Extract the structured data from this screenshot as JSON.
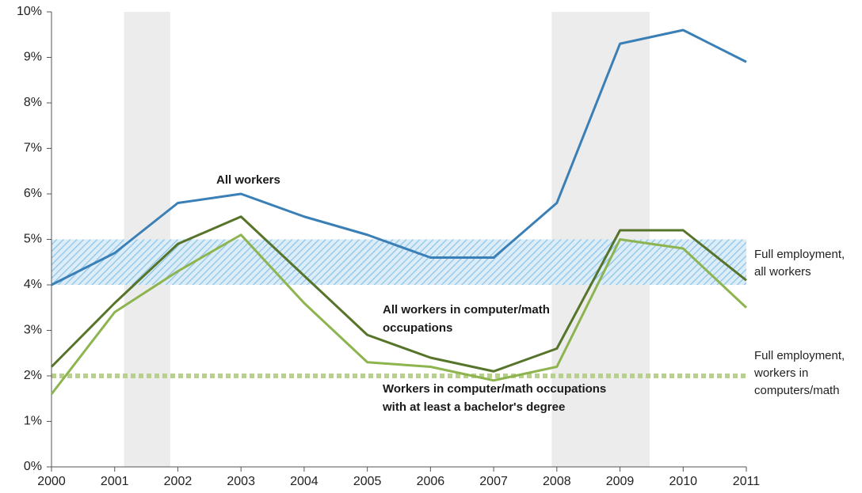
{
  "chart_data": {
    "type": "line",
    "x": [
      2000,
      2001,
      2002,
      2003,
      2004,
      2005,
      2006,
      2007,
      2008,
      2009,
      2010,
      2011
    ],
    "xlim": [
      2000,
      2011
    ],
    "xticks": [
      2000,
      2001,
      2002,
      2003,
      2004,
      2005,
      2006,
      2007,
      2008,
      2009,
      2010,
      2011
    ],
    "ylim": [
      0,
      10
    ],
    "yticks": [
      {
        "value": 0,
        "label": "0%"
      },
      {
        "value": 1,
        "label": "1%"
      },
      {
        "value": 2,
        "label": "2%"
      },
      {
        "value": 3,
        "label": "3%"
      },
      {
        "value": 4,
        "label": "4%"
      },
      {
        "value": 5,
        "label": "5%"
      },
      {
        "value": 6,
        "label": "6%"
      },
      {
        "value": 7,
        "label": "7%"
      },
      {
        "value": 8,
        "label": "8%"
      },
      {
        "value": 9,
        "label": "9%"
      },
      {
        "value": 10,
        "label": "10%"
      }
    ],
    "grid": false,
    "shaded_periods": [
      [
        2001.15,
        2001.88
      ],
      [
        2007.92,
        2009.47
      ]
    ],
    "shade_color": "#ececec",
    "series": [
      {
        "label": [
          "All workers"
        ],
        "color": "#3a7fb5",
        "values": [
          4.0,
          4.7,
          5.8,
          6.0,
          5.5,
          5.1,
          4.6,
          4.6,
          5.8,
          9.3,
          9.6,
          8.9
        ]
      },
      {
        "label": [
          "All workers in computer/math",
          "occupations"
        ],
        "color": "#56742a",
        "values": [
          2.2,
          3.6,
          4.9,
          5.5,
          4.2,
          2.9,
          2.4,
          2.1,
          2.6,
          5.2,
          5.2,
          4.1
        ]
      },
      {
        "label": [
          "Workers in computer/math occupations",
          "with at least a bachelor's degree"
        ],
        "color": "#8db44e",
        "values": [
          1.6,
          3.4,
          4.3,
          5.1,
          3.6,
          2.3,
          2.2,
          1.9,
          2.2,
          5.0,
          4.8,
          3.5
        ]
      }
    ],
    "references": [
      {
        "range": [
          4,
          5
        ],
        "color": "#8cc3e8",
        "label": [
          "Full employment,",
          "all workers"
        ]
      },
      {
        "value": 2,
        "color": "#b9cf8e",
        "label": [
          "Full employment,",
          "workers in",
          "computers/math"
        ]
      }
    ]
  }
}
